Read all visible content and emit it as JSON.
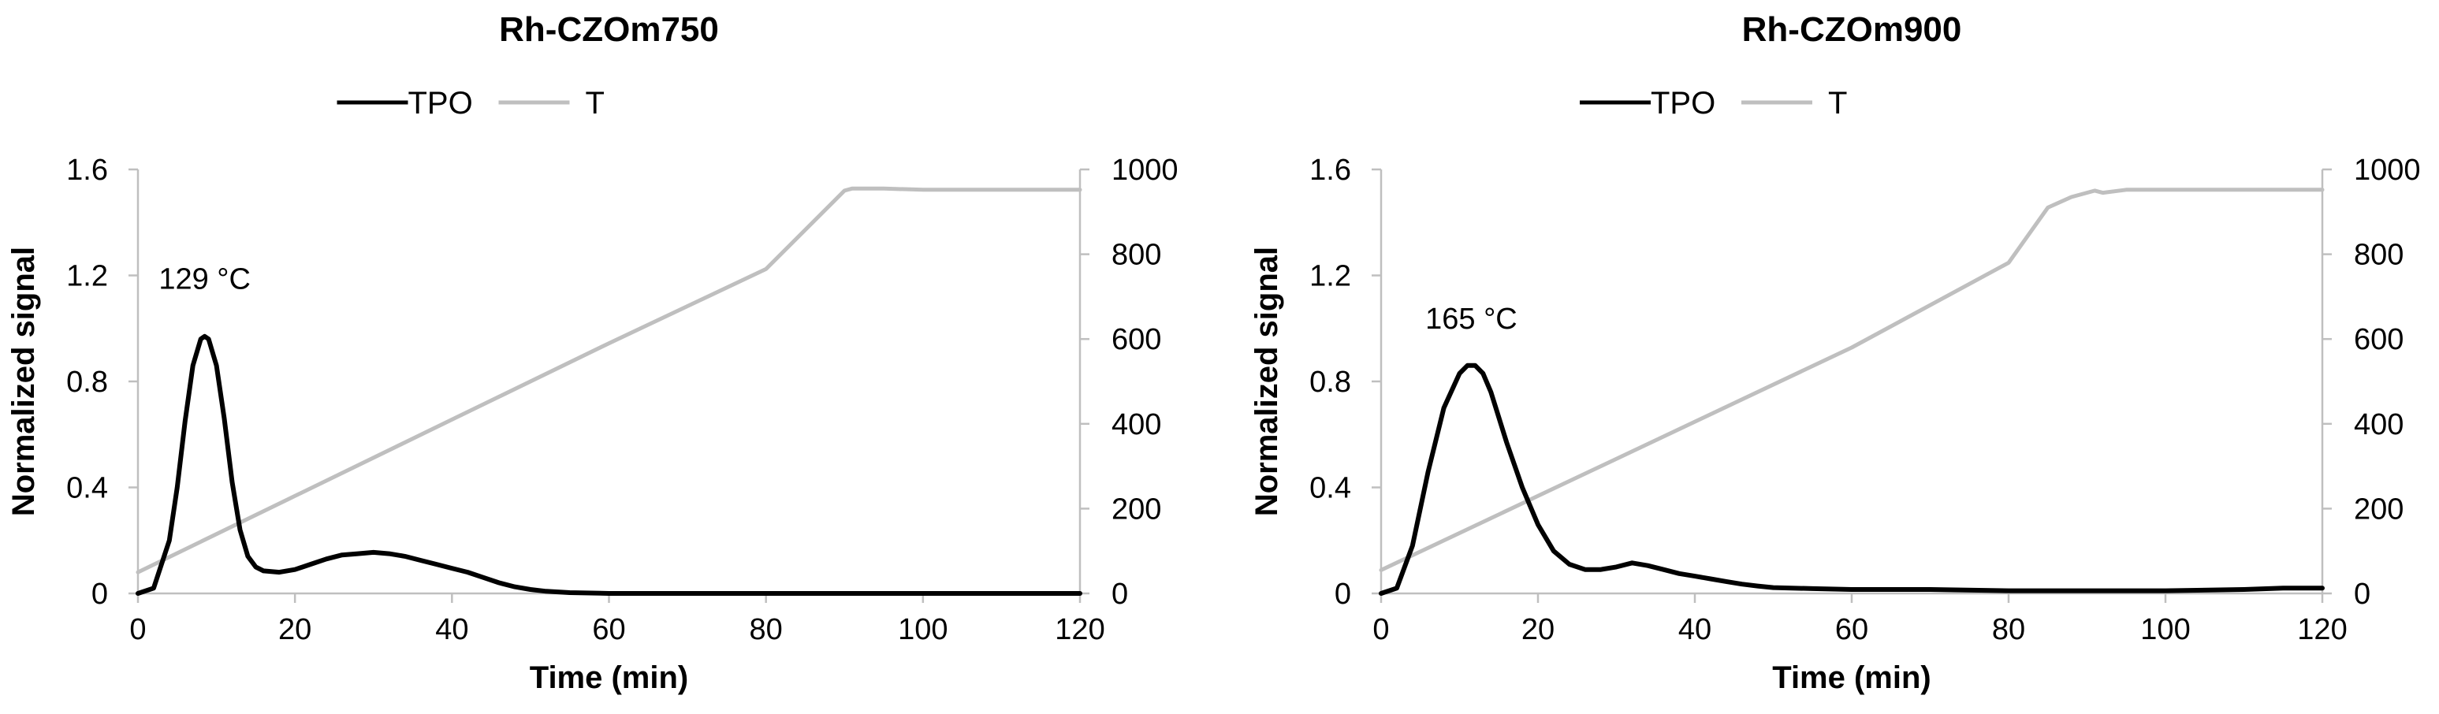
{
  "colors": {
    "TPO": "#000000",
    "T": "#bfbfbf",
    "axis": "#bfbfbf",
    "background": "#ffffff"
  },
  "chart_data": [
    {
      "type": "line",
      "title": "Rh-CZOm750",
      "xlabel": "Time (min)",
      "ylabel": "Normalized signal",
      "y2label": "",
      "xlim": [
        0,
        120
      ],
      "ylim": [
        0,
        1.6
      ],
      "y2lim": [
        0,
        1000
      ],
      "xticks": [
        0,
        20,
        40,
        60,
        80,
        100,
        120
      ],
      "xtick_labels": [
        "0",
        "20",
        "40",
        "60",
        "80",
        "100",
        "120"
      ],
      "yticks": [
        0,
        0.4,
        0.8,
        1.2,
        1.6
      ],
      "ytick_labels": [
        "0",
        "0.4",
        "0.8",
        "1.2",
        "1.6"
      ],
      "y2ticks": [
        0,
        200,
        400,
        600,
        800,
        1000
      ],
      "y2tick_labels": [
        "0",
        "200",
        "400",
        "600",
        "800",
        "1000"
      ],
      "grid": false,
      "legend_position": "top-center",
      "annotation": {
        "text": "129 °C",
        "x": 8.5,
        "y": 1.15
      },
      "series": [
        {
          "name": "TPO",
          "axis": "left",
          "color": "#000000",
          "x": [
            0,
            2,
            4,
            5,
            6,
            7,
            8,
            8.5,
            9,
            10,
            11,
            12,
            13,
            14,
            15,
            16,
            18,
            20,
            22,
            24,
            26,
            28,
            30,
            32,
            34,
            36,
            38,
            40,
            42,
            44,
            46,
            48,
            50,
            52,
            55,
            60,
            70,
            80,
            90,
            100,
            110,
            120
          ],
          "y": [
            0,
            0.02,
            0.2,
            0.4,
            0.65,
            0.86,
            0.96,
            0.97,
            0.96,
            0.86,
            0.66,
            0.42,
            0.24,
            0.14,
            0.1,
            0.085,
            0.08,
            0.09,
            0.11,
            0.13,
            0.145,
            0.15,
            0.155,
            0.15,
            0.14,
            0.125,
            0.11,
            0.095,
            0.08,
            0.06,
            0.04,
            0.025,
            0.015,
            0.008,
            0.003,
            0.0,
            0.0,
            0.0,
            0.0,
            0.0,
            0.0,
            0.0
          ]
        },
        {
          "name": "T",
          "axis": "right",
          "color": "#bfbfbf",
          "x": [
            0,
            20,
            40,
            60,
            80,
            90,
            91,
            95,
            100,
            120
          ],
          "y": [
            50,
            230,
            410,
            590,
            765,
            950,
            955,
            955,
            952,
            952
          ]
        }
      ]
    },
    {
      "type": "line",
      "title": "Rh-CZOm900",
      "xlabel": "Time (min)",
      "ylabel": "Normalized signal",
      "y2label": "",
      "xlim": [
        0,
        120
      ],
      "ylim": [
        0,
        1.6
      ],
      "y2lim": [
        0,
        1000
      ],
      "xticks": [
        0,
        20,
        40,
        60,
        80,
        100,
        120
      ],
      "xtick_labels": [
        "0",
        "20",
        "40",
        "60",
        "80",
        "100",
        "120"
      ],
      "yticks": [
        0,
        0.4,
        0.8,
        1.2,
        1.6
      ],
      "ytick_labels": [
        "0",
        "0.4",
        "0.8",
        "1.2",
        "1.6"
      ],
      "y2ticks": [
        0,
        200,
        400,
        600,
        800,
        1000
      ],
      "y2tick_labels": [
        "0",
        "200",
        "400",
        "600",
        "800",
        "1000"
      ],
      "grid": false,
      "legend_position": "top-center",
      "annotation": {
        "text": "165 °C",
        "x": 11.5,
        "y": 1.0
      },
      "series": [
        {
          "name": "TPO",
          "axis": "left",
          "color": "#000000",
          "x": [
            0,
            2,
            4,
            6,
            8,
            10,
            11,
            12,
            13,
            14,
            16,
            18,
            20,
            22,
            24,
            26,
            28,
            30,
            32,
            34,
            36,
            38,
            40,
            42,
            44,
            46,
            48,
            50,
            55,
            60,
            70,
            80,
            90,
            100,
            110,
            115,
            120
          ],
          "y": [
            0,
            0.02,
            0.18,
            0.46,
            0.7,
            0.83,
            0.86,
            0.86,
            0.83,
            0.76,
            0.57,
            0.4,
            0.26,
            0.16,
            0.11,
            0.09,
            0.09,
            0.1,
            0.115,
            0.105,
            0.09,
            0.075,
            0.065,
            0.055,
            0.045,
            0.035,
            0.028,
            0.022,
            0.018,
            0.015,
            0.015,
            0.01,
            0.01,
            0.01,
            0.015,
            0.02,
            0.02
          ]
        },
        {
          "name": "T",
          "axis": "right",
          "color": "#bfbfbf",
          "x": [
            0,
            20,
            40,
            60,
            80,
            85,
            88,
            91,
            92,
            95,
            100,
            120
          ],
          "y": [
            55,
            230,
            405,
            580,
            780,
            910,
            935,
            950,
            945,
            952,
            952,
            952
          ]
        }
      ]
    }
  ]
}
